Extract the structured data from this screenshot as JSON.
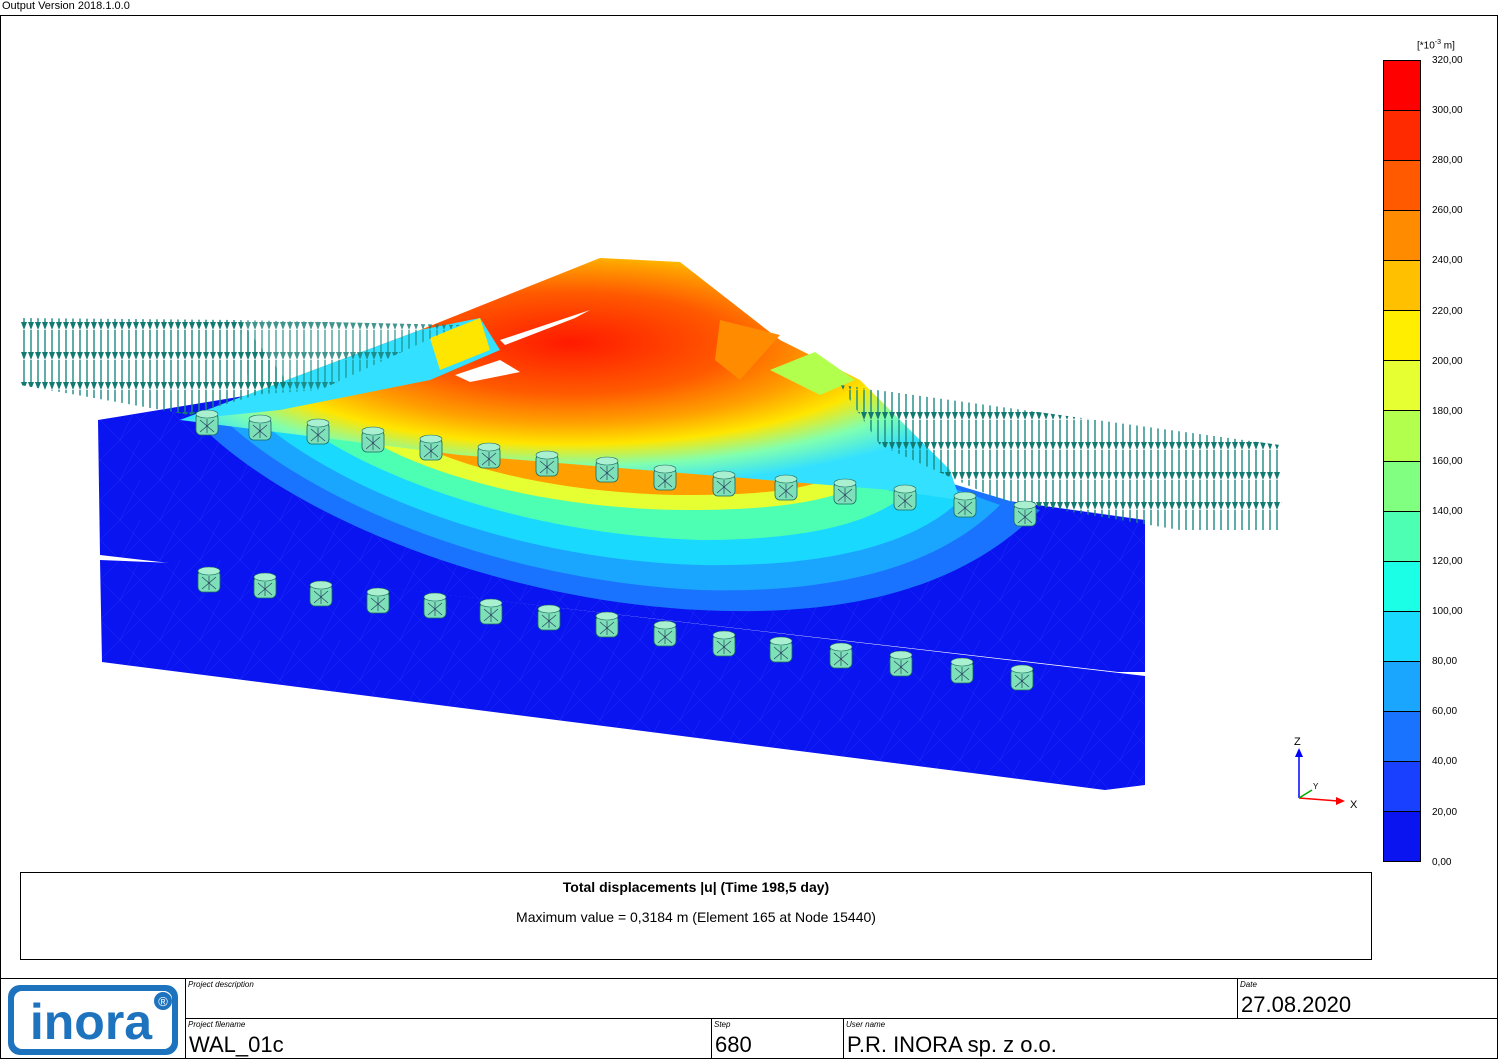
{
  "header": {
    "version": "Output Version 2018.1.0.0"
  },
  "legend": {
    "unit_base": "[*10",
    "unit_exp": "-3",
    "unit_tail": " m]",
    "ticks": [
      "320,00",
      "300,00",
      "280,00",
      "260,00",
      "240,00",
      "220,00",
      "200,00",
      "180,00",
      "160,00",
      "140,00",
      "120,00",
      "100,00",
      "80,00",
      "60,00",
      "40,00",
      "20,00",
      "0,00"
    ],
    "colors": [
      "#ff0000",
      "#ff2a00",
      "#ff5a00",
      "#ff8c00",
      "#ffc000",
      "#ffee00",
      "#e6ff33",
      "#b3ff4d",
      "#80ff80",
      "#4dffb3",
      "#1affe6",
      "#1ad9ff",
      "#1aa6ff",
      "#1a73ff",
      "#1a40ff",
      "#0a14f0"
    ]
  },
  "axes": {
    "z": "Z",
    "y": "Y",
    "x": "X"
  },
  "caption": {
    "title": "Total displacements |u|  (Time 198,5 day)",
    "subtitle": "Maximum value = 0,3184 m (Element 165 at Node 15440)"
  },
  "title_block": {
    "logo_text": "inora",
    "logo_mark": "®",
    "project_description_label": "Project description",
    "project_description": "",
    "date_label": "Date",
    "date": "27.08.2020",
    "filename_label": "Project filename",
    "filename": "WAL_01c",
    "step_label": "Step",
    "step": "680",
    "user_label": "User name",
    "user": "P.R. INORA sp. z o.o."
  }
}
